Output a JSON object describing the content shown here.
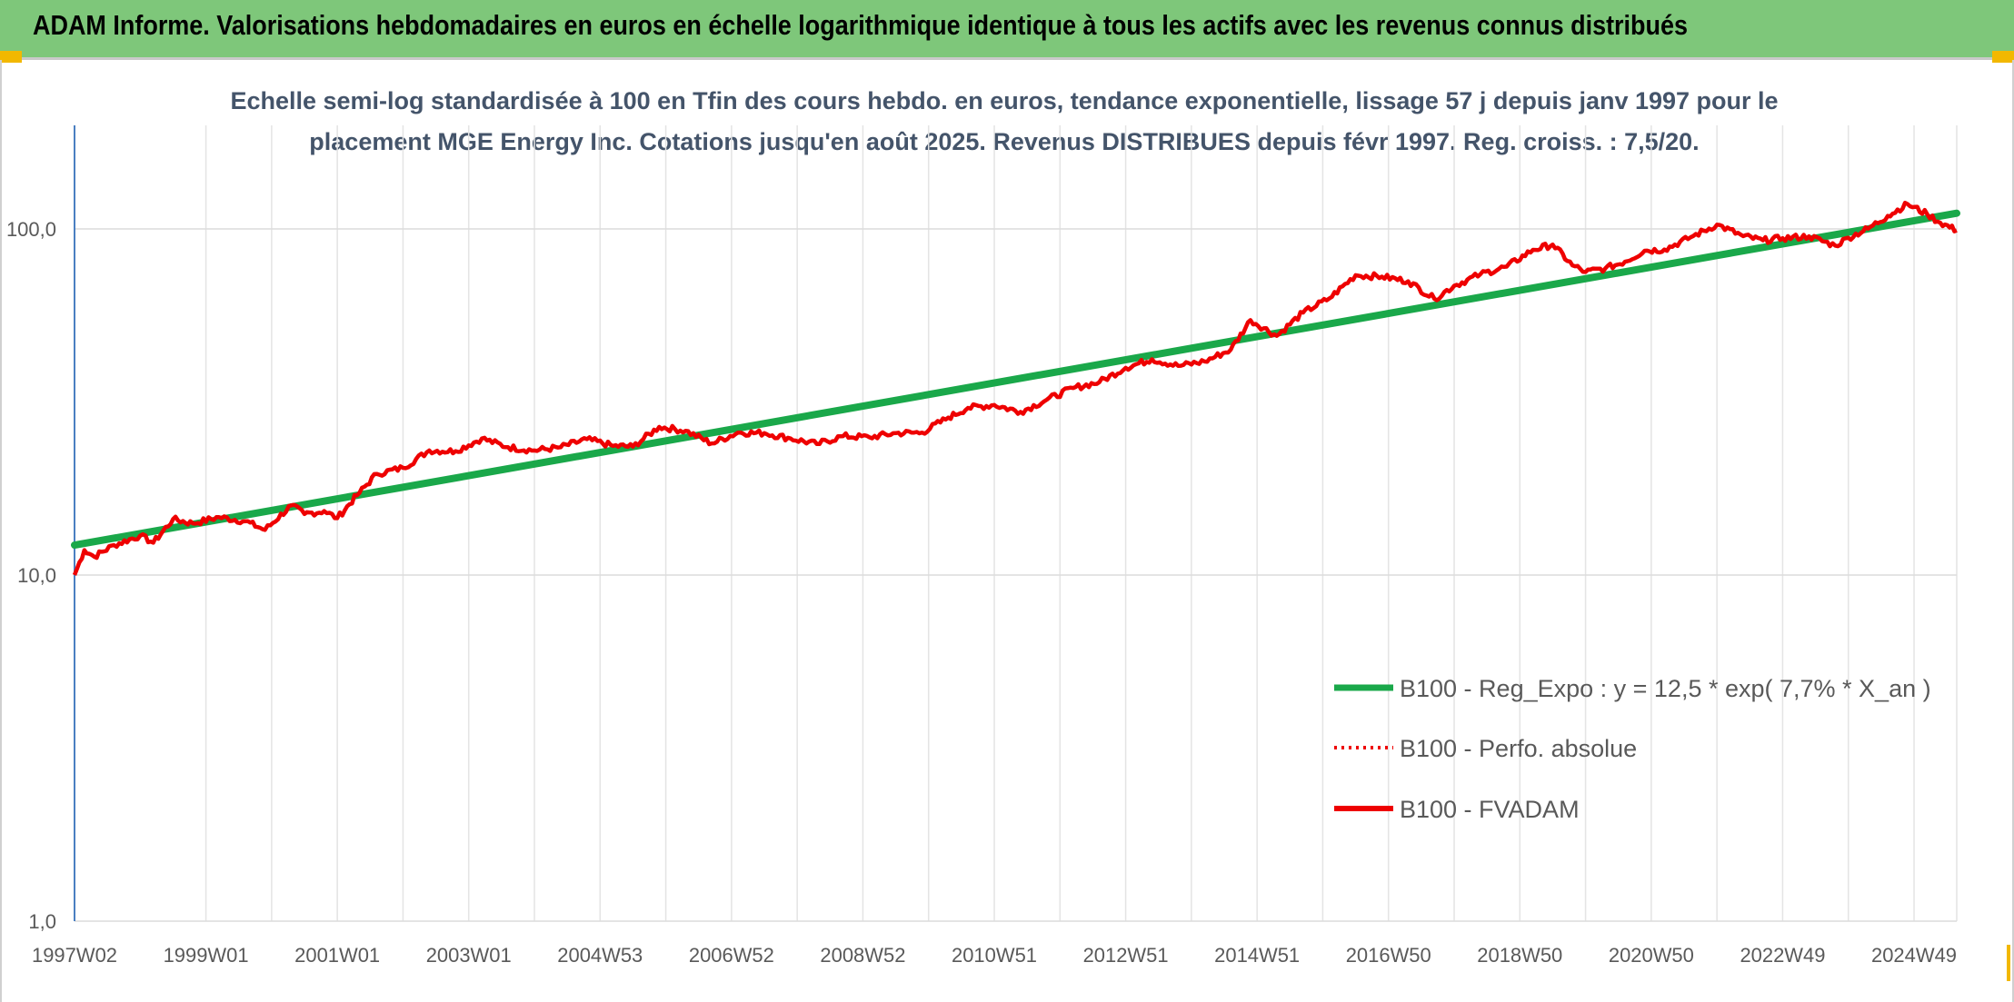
{
  "header": {
    "title": "ADAM Informe. Valorisations hebdomadaires en euros en échelle logarithmique identique à tous les actifs avec les revenus connus distribués"
  },
  "colors": {
    "header_bg": "#7ec77a",
    "corner_accent": "#f2b800",
    "trend": "#1aa84a",
    "fvadam": "#ee0000",
    "perfo": "#ee0000",
    "subtitle_text": "#44546a",
    "axis_text": "#595959"
  },
  "chart_data": {
    "type": "line",
    "title_line1": "Echelle semi-log standardisée à 100 en Tfin des cours hebdo. en euros, tendance exponentielle, lissage 57 j depuis janv 1997 pour le",
    "title_line2": "placement MGE Energy Inc. Cotations jusqu'en août 2025. Revenus DISTRIBUES depuis févr 1997. Reg. croiss. : 7,5/20.",
    "y_scale": "log",
    "ylim": [
      1,
      200
    ],
    "y_ticks": [
      "1,0",
      "10,0",
      "100,0"
    ],
    "y_tick_values": [
      1,
      10,
      100
    ],
    "x_range_years": [
      1997.0,
      2025.65
    ],
    "x_ticks": [
      "1997W02",
      "1999W01",
      "2001W01",
      "2003W01",
      "2004W53",
      "2006W52",
      "2008W52",
      "2010W51",
      "2012W51",
      "2014W51",
      "2016W50",
      "2018W50",
      "2020W50",
      "2022W49",
      "2024W49"
    ],
    "x_tick_years": [
      1997.0,
      1999.0,
      2001.0,
      2003.0,
      2005.0,
      2007.0,
      2009.0,
      2011.0,
      2013.0,
      2015.0,
      2017.0,
      2019.0,
      2021.0,
      2023.0,
      2025.0
    ],
    "grid": "vertical and horizontal",
    "legend_position": "right",
    "series": [
      {
        "name": "B100 - Reg_Expo : y = 12,5 * exp( 7,7% *  X_an )",
        "style": "solid-thick",
        "color": "#1aa84a",
        "x": [
          1997.0,
          2025.65
        ],
        "y": [
          12.2,
          111
        ]
      },
      {
        "name": "B100 - Perfo. absolue",
        "style": "dotted",
        "color": "#ee0000",
        "x": [],
        "y": []
      },
      {
        "name": "B100 - FVADAM",
        "style": "solid",
        "color": "#ee0000",
        "x": [
          1997.0,
          1997.15,
          1997.3,
          1997.6,
          1998.0,
          1998.2,
          1998.5,
          1998.8,
          1999.2,
          1999.6,
          1999.9,
          2000.3,
          2000.5,
          2000.8,
          2001.0,
          2001.3,
          2001.6,
          2002.0,
          2002.4,
          2002.8,
          2003.2,
          2003.6,
          2004.0,
          2004.4,
          2004.8,
          2005.2,
          2005.5,
          2005.9,
          2006.3,
          2006.7,
          2007.1,
          2007.5,
          2007.9,
          2008.3,
          2008.7,
          2009.1,
          2009.5,
          2009.9,
          2010.3,
          2010.6,
          2011.0,
          2011.4,
          2011.8,
          2012.2,
          2012.6,
          2013.0,
          2013.4,
          2013.8,
          2014.2,
          2014.6,
          2014.9,
          2015.3,
          2015.7,
          2016.1,
          2016.5,
          2016.9,
          2017.3,
          2017.7,
          2018.0,
          2018.4,
          2018.8,
          2019.2,
          2019.5,
          2019.8,
          2020.0,
          2020.3,
          2020.6,
          2020.9,
          2021.2,
          2021.6,
          2022.0,
          2022.4,
          2022.7,
          2023.0,
          2023.4,
          2023.8,
          2024.0,
          2024.3,
          2024.6,
          2024.9,
          2025.2,
          2025.4,
          2025.65
        ],
        "y": [
          10.0,
          11.8,
          11.3,
          12.2,
          13.0,
          12.4,
          14.5,
          14.1,
          14.7,
          14.3,
          13.5,
          15.9,
          15.0,
          15.3,
          14.6,
          17.0,
          19.6,
          20.4,
          22.9,
          22.8,
          24.8,
          23.4,
          22.9,
          23.4,
          24.7,
          23.6,
          23.5,
          26.8,
          26.1,
          24.0,
          25.8,
          25.7,
          24.8,
          23.9,
          25.2,
          25.0,
          25.7,
          25.8,
          28.5,
          30.4,
          31.0,
          29.6,
          32.1,
          34.7,
          36.1,
          39.7,
          42.0,
          40.2,
          41.4,
          44.8,
          54.5,
          49.1,
          57.3,
          63.0,
          73.5,
          72.8,
          70.6,
          62.8,
          68.5,
          74.0,
          77.8,
          87.0,
          90.1,
          78.5,
          75.1,
          76.9,
          80.4,
          86.5,
          87.2,
          94.6,
          102.9,
          95.3,
          92.7,
          94.0,
          95.2,
          89.5,
          94.3,
          100.2,
          109.0,
          118.0,
          110.3,
          104.2,
          99.0
        ]
      }
    ]
  }
}
